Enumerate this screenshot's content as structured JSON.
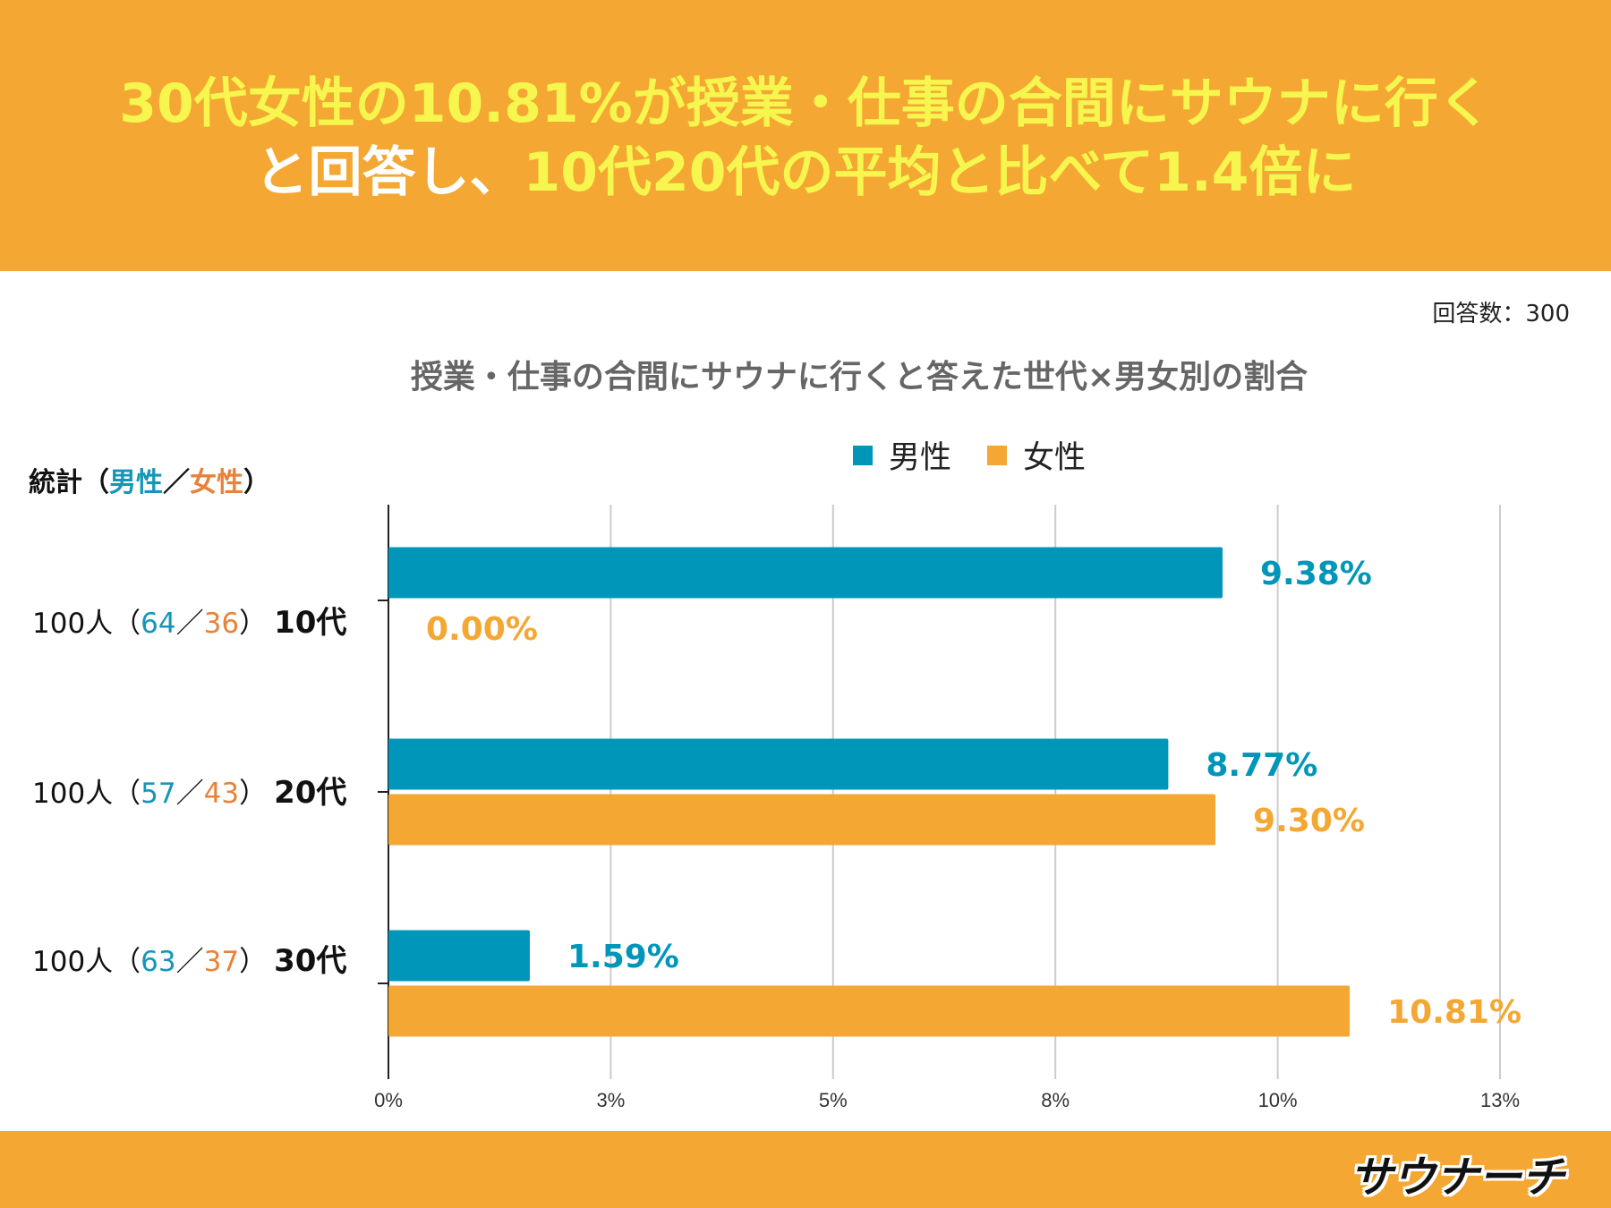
{
  "headline": {
    "line1_hl": "30代女性の10.81%が授業・仕事の合間にサウナに行く",
    "line2_white": "と回答し、",
    "line2_hl": "10代20代の平均と比べて1.4倍に"
  },
  "response_count": "回答数：300",
  "stats": {
    "header_prefix": "統計（",
    "header_male": "男性",
    "header_sep": "／",
    "header_female": "女性",
    "header_suffix": "）",
    "rows": [
      {
        "total": "100人（",
        "male": "64",
        "sep": "／",
        "female": "36",
        "close": "）",
        "age": "10代"
      },
      {
        "total": "100人（",
        "male": "57",
        "sep": "／",
        "female": "43",
        "close": "）",
        "age": "20代"
      },
      {
        "total": "100人（",
        "male": "63",
        "sep": "／",
        "female": "37",
        "close": "）",
        "age": "30代"
      }
    ]
  },
  "logo_text": "サウナーチ",
  "colors": {
    "male": "#0096b9",
    "female": "#f4a733",
    "header": "#f4a733",
    "highlight": "#f6f64e"
  },
  "chart_data": {
    "type": "bar",
    "orientation": "horizontal",
    "title": "授業・仕事の合間にサウナに行くと答えた世代×男女別の割合",
    "categories": [
      "10代",
      "20代",
      "30代"
    ],
    "series": [
      {
        "name": "男性",
        "values": [
          9.38,
          8.77,
          1.59
        ],
        "labels": [
          "9.38%",
          "8.77%",
          "1.59%"
        ]
      },
      {
        "name": "女性",
        "values": [
          0.0,
          9.3,
          10.81
        ],
        "labels": [
          "0.00%",
          "9.30%",
          "10.81%"
        ]
      }
    ],
    "x_ticks": [
      "0%",
      "3%",
      "5%",
      "8%",
      "10%",
      "13%"
    ],
    "xlim": [
      0,
      12.5
    ],
    "grid": true,
    "legend_position": "top"
  }
}
